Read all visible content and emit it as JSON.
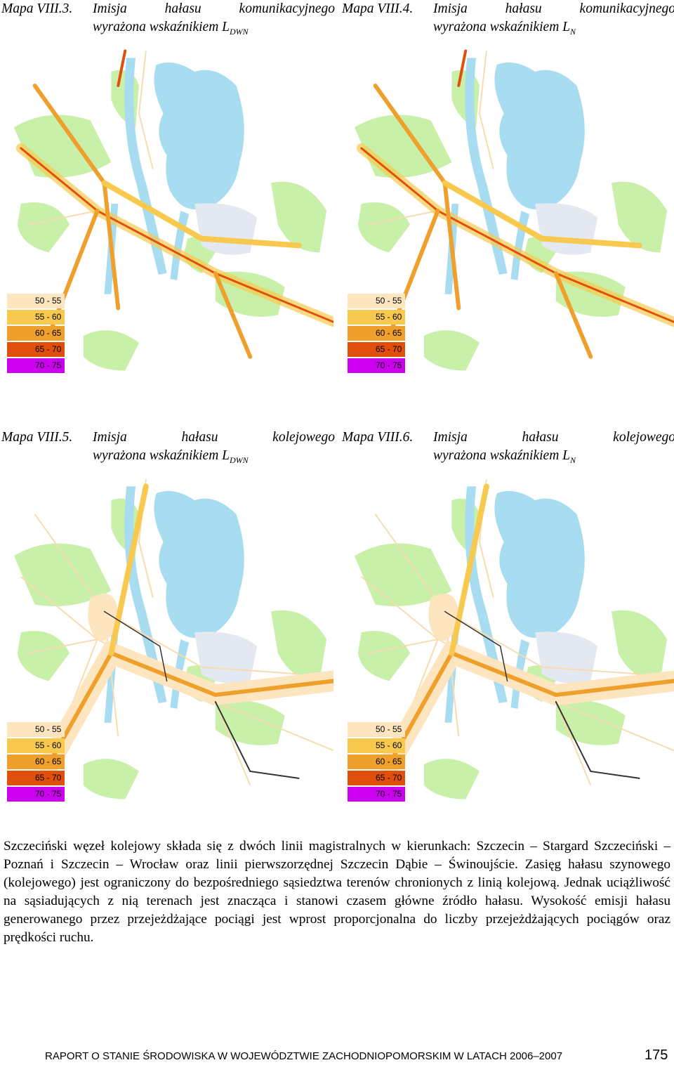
{
  "maps": [
    {
      "label": "Mapa VIII.3.",
      "title": "Imisja hałasu komunikacyjnego",
      "line2": "wyrażona wskaźnikiem L",
      "sub": "DWN",
      "kind": "road",
      "legend": [
        {
          "label": "50 - 55",
          "color": "#fde6bf"
        },
        {
          "label": "55 - 60",
          "color": "#f8c94f"
        },
        {
          "label": "60 - 65",
          "color": "#efa02c"
        },
        {
          "label": "65 - 70",
          "color": "#e0500c"
        },
        {
          "label": "70 - 75",
          "color": "#cc00ee"
        }
      ]
    },
    {
      "label": "Mapa VIII.4.",
      "title": "Imisja hałasu komunikacyjnego",
      "line2": "wyrażona wskaźnikiem L",
      "sub": "N",
      "kind": "road",
      "legend": [
        {
          "label": "50 - 55",
          "color": "#fde6bf"
        },
        {
          "label": "55 - 60",
          "color": "#f8c94f"
        },
        {
          "label": "60 - 65",
          "color": "#efa02c"
        },
        {
          "label": "65 - 70",
          "color": "#e0500c"
        },
        {
          "label": "70 - 75",
          "color": "#cc00ee"
        }
      ]
    },
    {
      "label": "Mapa VIII.5.",
      "title": "Imisja hałasu kolejowego",
      "line2": "wyrażona wskaźnikiem L",
      "sub": "DWN",
      "kind": "rail",
      "legend": [
        {
          "label": "50 - 55",
          "color": "#fde6bf"
        },
        {
          "label": "55 - 60",
          "color": "#f8c94f"
        },
        {
          "label": "60 - 65",
          "color": "#efa02c"
        },
        {
          "label": "65 - 70",
          "color": "#e0500c"
        },
        {
          "label": "70 - 75",
          "color": "#cc00ee"
        }
      ]
    },
    {
      "label": "Mapa VIII.6.",
      "title": "Imisja hałasu kolejowego",
      "line2": "wyrażona wskaźnikiem L",
      "sub": "N",
      "kind": "rail",
      "legend": [
        {
          "label": "50 - 55",
          "color": "#fde6bf"
        },
        {
          "label": "55 - 60",
          "color": "#f8c94f"
        },
        {
          "label": "60 - 65",
          "color": "#efa02c"
        },
        {
          "label": "65 - 70",
          "color": "#e0500c"
        },
        {
          "label": "70 - 75",
          "color": "#cc00ee"
        }
      ]
    }
  ],
  "paragraph": "Szczeciński węzeł kolejowy składa się z dwóch linii magistralnych w kierunkach: Szczecin – Stargard Szczeciński – Poznań i Szczecin – Wrocław oraz linii pierwszorzędnej Szczecin Dąbie – Świnoujście. Zasięg hałasu szynowego (kolejowego) jest ograniczony do bezpośredniego sąsiedztwa terenów chronionych z linią kolejową. Jednak uciążliwość na sąsiadujących z nią terenach jest znacząca i stanowi czasem główne źródło hałasu. Wysokość emisji hałasu generowanego przez przejeżdżające pociągi jest wprost proporcjonalna do liczby przejeżdżających pociągów oraz prędkości ruchu.",
  "footer": {
    "text": "RAPORT O STANIE ŚRODOWISKA W WOJEWÓDZTWIE ZACHODNIOPOMORSKIM W LATACH 2006–2007",
    "page": "175"
  }
}
